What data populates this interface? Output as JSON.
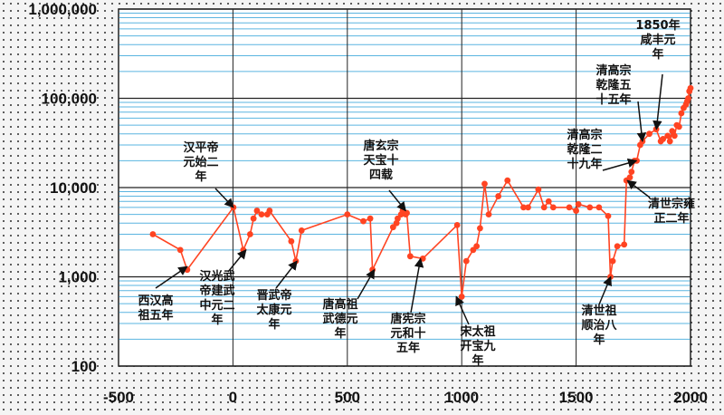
{
  "chart_data": {
    "type": "line",
    "title": "",
    "xlabel": "",
    "ylabel": "",
    "xlim": [
      -500,
      2000
    ],
    "ylim": [
      100,
      1000000
    ],
    "yscale": "log",
    "grid": true,
    "x_ticks": [
      -500,
      0,
      500,
      1000,
      1500,
      2000
    ],
    "x_tick_labels": [
      "-500",
      "0",
      "500",
      "1000",
      "1500",
      "2000"
    ],
    "y_ticks": [
      100,
      1000,
      10000,
      100000,
      1000000
    ],
    "y_tick_labels": [
      "100",
      "1,000",
      "10,000",
      "100,000",
      "1,000,000"
    ],
    "color": "#ff4422",
    "series": [
      {
        "x": [
          -350,
          -230,
          -200,
          2,
          45,
          75,
          90,
          105,
          125,
          150,
          160,
          255,
          275,
          300,
          500,
          570,
          600,
          610,
          700,
          715,
          720,
          735,
          742,
          755,
          760,
          775,
          830,
          980,
          1000,
          1020,
          1050,
          1065,
          1080,
          1100,
          1118,
          1160,
          1200,
          1270,
          1290,
          1335,
          1360,
          1380,
          1400,
          1470,
          1500,
          1510,
          1560,
          1600,
          1640,
          1650,
          1660,
          1680,
          1710,
          1720,
          1735,
          1742,
          1755,
          1765,
          1780,
          1790,
          1820,
          1850,
          1870,
          1880,
          1900,
          1910,
          1920,
          1930,
          1940,
          1950,
          1960,
          1970,
          1980,
          1985,
          1990,
          1995,
          2000
        ],
        "y": [
          3000,
          2000,
          1200,
          6000,
          2000,
          3000,
          4500,
          5500,
          5000,
          5000,
          5500,
          2500,
          1500,
          3300,
          5000,
          4200,
          4500,
          1200,
          3600,
          4000,
          4500,
          5000,
          5500,
          5000,
          5200,
          1700,
          1600,
          3800,
          600,
          1500,
          2000,
          2200,
          3500,
          11000,
          5000,
          8000,
          12000,
          6000,
          6000,
          9500,
          6000,
          7000,
          6000,
          6000,
          5500,
          6500,
          6000,
          6000,
          4800,
          1000,
          1500,
          2200,
          2300,
          12000,
          13000,
          15000,
          20000,
          20000,
          30000,
          33000,
          40000,
          45000,
          33000,
          35000,
          38000,
          33000,
          43000,
          38000,
          50000,
          48000,
          68000,
          78000,
          85000,
          92000,
          100000,
          120000,
          130000
        ]
      }
    ],
    "annotations": [
      {
        "text": "西汉高祖五年",
        "x": -202
      },
      {
        "text": "汉平帝元始二年",
        "x": 2
      },
      {
        "text": "汉光武帝建武中元二年",
        "x": 57
      },
      {
        "text": "晋武帝太康元年",
        "x": 280
      },
      {
        "text": "唐高祖武德元年",
        "x": 618
      },
      {
        "text": "唐玄宗天宝十四载",
        "x": 755
      },
      {
        "text": "唐宪宗元和十五年",
        "x": 820
      },
      {
        "text": "宋太祖开宝九年",
        "x": 976
      },
      {
        "text": "清世祖顺治八年",
        "x": 1651
      },
      {
        "text": "清世宗雍正二年",
        "x": 1724
      },
      {
        "text": "清高宗乾隆二十九年",
        "x": 1764
      },
      {
        "text": "清高宗乾隆五十五年",
        "x": 1790
      },
      {
        "text": "1850年咸丰元年",
        "x": 1851
      }
    ]
  }
}
